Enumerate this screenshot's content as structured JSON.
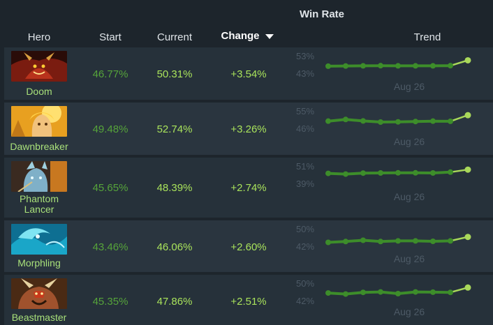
{
  "header": {
    "group_title": "Win Rate",
    "hero": "Hero",
    "start": "Start",
    "current": "Current",
    "change": "Change",
    "trend": "Trend"
  },
  "colors": {
    "background": "#1d252c",
    "row": "#26313a",
    "start_text": "#56a43a",
    "current_text": "#a9e35b",
    "trend_line": "#3d8d2a",
    "trend_last_segment": "#a9d85a"
  },
  "rows": [
    {
      "name": "Doom",
      "start": "46.77%",
      "current": "50.31%",
      "change": "+3.54%",
      "trend_high": "53%",
      "trend_low": "43%",
      "trend_date": "Aug 26",
      "trend_range": [
        43,
        53
      ],
      "trend": [
        46.8,
        46.9,
        47.0,
        47.1,
        47.0,
        47.0,
        47.0,
        47.1,
        50.3
      ]
    },
    {
      "name": "Dawnbreaker",
      "start": "49.48%",
      "current": "52.74%",
      "change": "+3.26%",
      "trend_high": "55%",
      "trend_low": "46%",
      "trend_date": "Aug 26",
      "trend_range": [
        46,
        55
      ],
      "trend": [
        49.5,
        50.4,
        49.6,
        49.0,
        49.1,
        49.3,
        49.5,
        49.4,
        52.7
      ]
    },
    {
      "name": "Phantom Lancer",
      "start": "45.65%",
      "current": "48.39%",
      "change": "+2.74%",
      "trend_high": "51%",
      "trend_low": "39%",
      "trend_date": "Aug 26",
      "trend_range": [
        39,
        51
      ],
      "trend": [
        45.7,
        45.2,
        45.9,
        46.0,
        46.1,
        46.1,
        46.0,
        46.6,
        48.4
      ]
    },
    {
      "name": "Morphling",
      "start": "43.46%",
      "current": "46.06%",
      "change": "+2.60%",
      "trend_high": "50%",
      "trend_low": "42%",
      "trend_date": "Aug 26",
      "trend_range": [
        42,
        50
      ],
      "trend": [
        43.5,
        43.9,
        44.5,
        43.9,
        44.2,
        44.2,
        44.0,
        44.2,
        46.1
      ]
    },
    {
      "name": "Beastmaster",
      "start": "45.35%",
      "current": "47.86%",
      "change": "+2.51%",
      "trend_high": "50%",
      "trend_low": "42%",
      "trend_date": "Aug 26",
      "trend_range": [
        42,
        50
      ],
      "trend": [
        45.3,
        44.8,
        45.6,
        45.8,
        45.0,
        45.8,
        45.7,
        45.6,
        47.9
      ]
    }
  ]
}
